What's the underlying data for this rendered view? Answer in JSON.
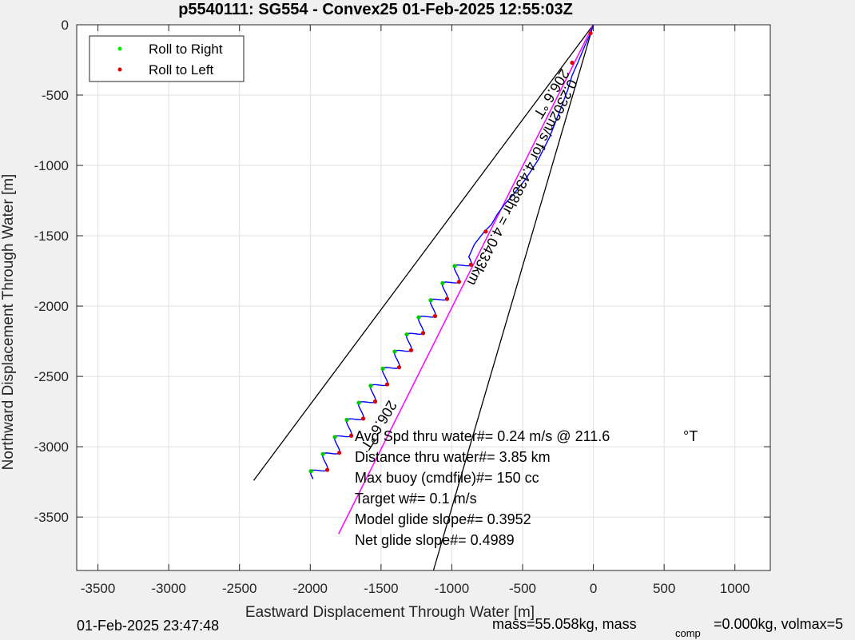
{
  "chart_data": {
    "type": "line",
    "title": "p5540111: SG554 - Convex25 01-Feb-2025 12:55:03Z",
    "xlabel": "Eastward Displacement Through Water [m]",
    "ylabel": "Northward Displacement Through Water [m]",
    "xlim": [
      -3650,
      1250
    ],
    "ylim": [
      -3880,
      0
    ],
    "xticks": [
      -3500,
      -3000,
      -2500,
      -2000,
      -1500,
      -1000,
      -500,
      0,
      500,
      1000
    ],
    "yticks": [
      0,
      -500,
      -1000,
      -1500,
      -2000,
      -2500,
      -3000,
      -3500
    ],
    "grid": true,
    "legend_position": "top-left",
    "legend": [
      {
        "label": "Roll to Right",
        "color": "#00ee00"
      },
      {
        "label": "Roll to Left",
        "color": "#dd0000"
      }
    ],
    "heading_cone": {
      "color": "#000000",
      "lines": [
        {
          "x": [
            0,
            -2400
          ],
          "y": [
            0,
            -3240
          ]
        },
        {
          "x": [
            0,
            -1130
          ],
          "y": [
            0,
            -3880
          ]
        }
      ]
    },
    "desired_track": {
      "color": "#ff00ff",
      "x": [
        0,
        -1800
      ],
      "y": [
        0,
        -3620
      ]
    },
    "path": {
      "color": "#0000ff",
      "x": [
        0,
        -20,
        -60,
        -110,
        -150,
        -180,
        -240,
        -310,
        -390,
        -480,
        -560,
        -630,
        -680,
        -720,
        -770,
        -840,
        -880
      ],
      "y": [
        0,
        -60,
        -150,
        -270,
        -360,
        -460,
        -620,
        -800,
        -960,
        -1100,
        -1200,
        -1280,
        -1350,
        -1420,
        -1470,
        -1560,
        -1650
      ]
    },
    "zigzag": {
      "start": [
        -880,
        -1650
      ],
      "end": [
        -1980,
        -3230
      ],
      "cycles": 13,
      "amplitude": 45
    },
    "annotations": {
      "track_label": "0.2302m/s for 4.4388hr = 4.0433km",
      "heading_label_top": "206.6 °T",
      "heading_label_bottom": "206.6 °T",
      "stats": [
        "Avg Spd thru water#=  0.24 m/s @ 211.6",
        "Distance thru water#=  3.85 km",
        "Max buoy (cmdfile)#= 150 cc",
        "Target w#= 0.1 m/s",
        "Model glide slope#= 0.3952",
        "Net glide slope#= 0.4989"
      ],
      "stats_unit": "°T"
    }
  },
  "footer": {
    "timestamp": "01-Feb-2025 23:47:48",
    "mass_text": "mass=55.058kg, mass",
    "mass_sub": "comp",
    "mass_rest": "=0.000kg, volmax=5"
  }
}
